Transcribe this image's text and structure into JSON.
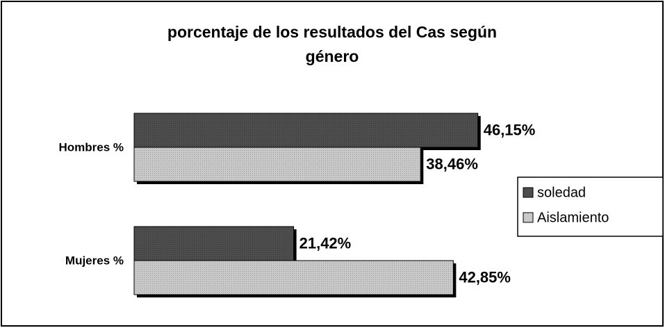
{
  "chart_data": {
    "type": "hbar",
    "title": [
      "porcentaje de los resultados del Cas según",
      "género"
    ],
    "categories": [
      "Hombres %",
      "Mujeres %"
    ],
    "series": [
      {
        "name": "soledad",
        "color": "#4d4d4d",
        "values": [
          46.15,
          21.42
        ],
        "value_labels": [
          "46,15%",
          "21,42%"
        ]
      },
      {
        "name": "Aislamiento",
        "color": "#c9c9c9",
        "values": [
          38.46,
          42.85
        ],
        "value_labels": [
          "38,46%",
          "42,85%"
        ]
      }
    ],
    "legend": "right"
  }
}
